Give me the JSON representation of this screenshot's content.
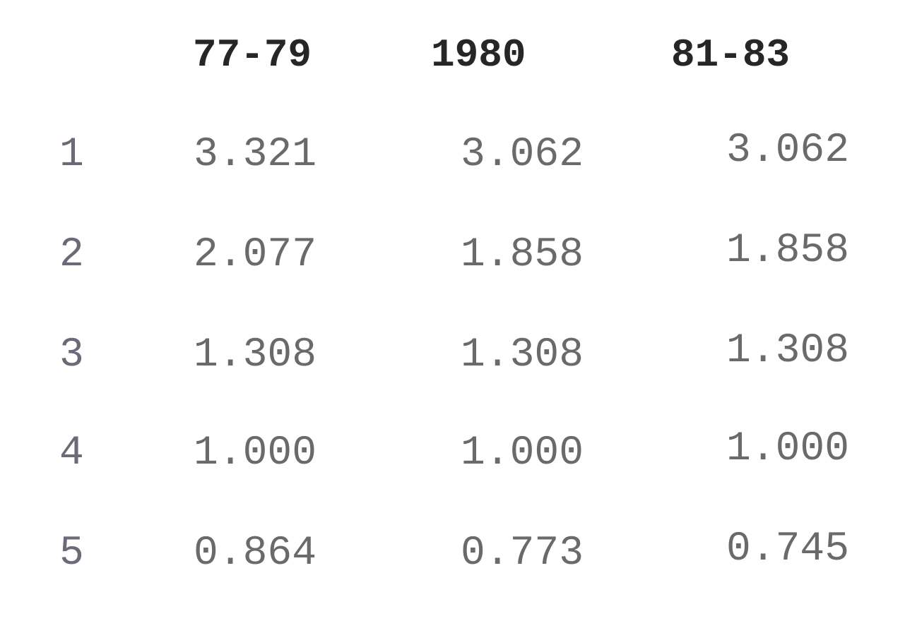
{
  "table": {
    "columns": [
      "77-79",
      "1980",
      "81-83"
    ],
    "rows": [
      [
        "1",
        "3.321",
        "3.062",
        "3.062"
      ],
      [
        "2",
        "2.077",
        "1.858",
        "1.858"
      ],
      [
        "3",
        "1.308",
        "1.308",
        "1.308"
      ],
      [
        "4",
        "1.000",
        "1.000",
        "1.000"
      ],
      [
        "5",
        "0.864",
        "0.773",
        "0.745"
      ]
    ]
  }
}
